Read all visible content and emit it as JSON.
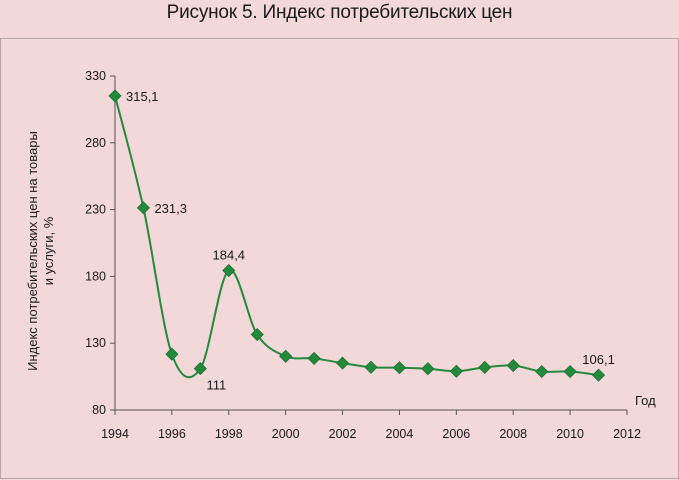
{
  "figure": {
    "title": "Рисунок 5. Индекс потребительских цен"
  },
  "chart_data": {
    "type": "line",
    "title": "Рисунок 5. Индекс потребительских цен",
    "xlabel": "Год",
    "ylabel": [
      "Индекс потребительских цен на товары",
      "и услуги, %"
    ],
    "xlim": [
      1994,
      2012
    ],
    "ylim": [
      80,
      330
    ],
    "x_ticks": [
      1994,
      1996,
      1998,
      2000,
      2002,
      2004,
      2006,
      2008,
      2010,
      2012
    ],
    "y_ticks": [
      80,
      130,
      180,
      230,
      280,
      330
    ],
    "grid": false,
    "legend": "none",
    "series": [
      {
        "color": "#238a3c",
        "marker": "diamond",
        "smooth": true,
        "x": [
          1994,
          1995,
          1996,
          1997,
          1998,
          1999,
          2000,
          2001,
          2002,
          2003,
          2004,
          2005,
          2006,
          2007,
          2008,
          2009,
          2010,
          2011
        ],
        "y": [
          315.1,
          231.3,
          121.8,
          111,
          184.4,
          136.5,
          120.2,
          118.6,
          115.1,
          112,
          111.7,
          110.9,
          109,
          111.9,
          113.3,
          108.8,
          108.8,
          106.1
        ]
      }
    ],
    "data_labels": [
      {
        "x": 1994,
        "text": "315,1",
        "pos": "right"
      },
      {
        "x": 1995,
        "text": "231,3",
        "pos": "right"
      },
      {
        "x": 1997,
        "text": "111",
        "pos": "below-right"
      },
      {
        "x": 1998,
        "text": "184,4",
        "pos": "above"
      },
      {
        "x": 2011,
        "text": "106,1",
        "pos": "above"
      }
    ]
  }
}
